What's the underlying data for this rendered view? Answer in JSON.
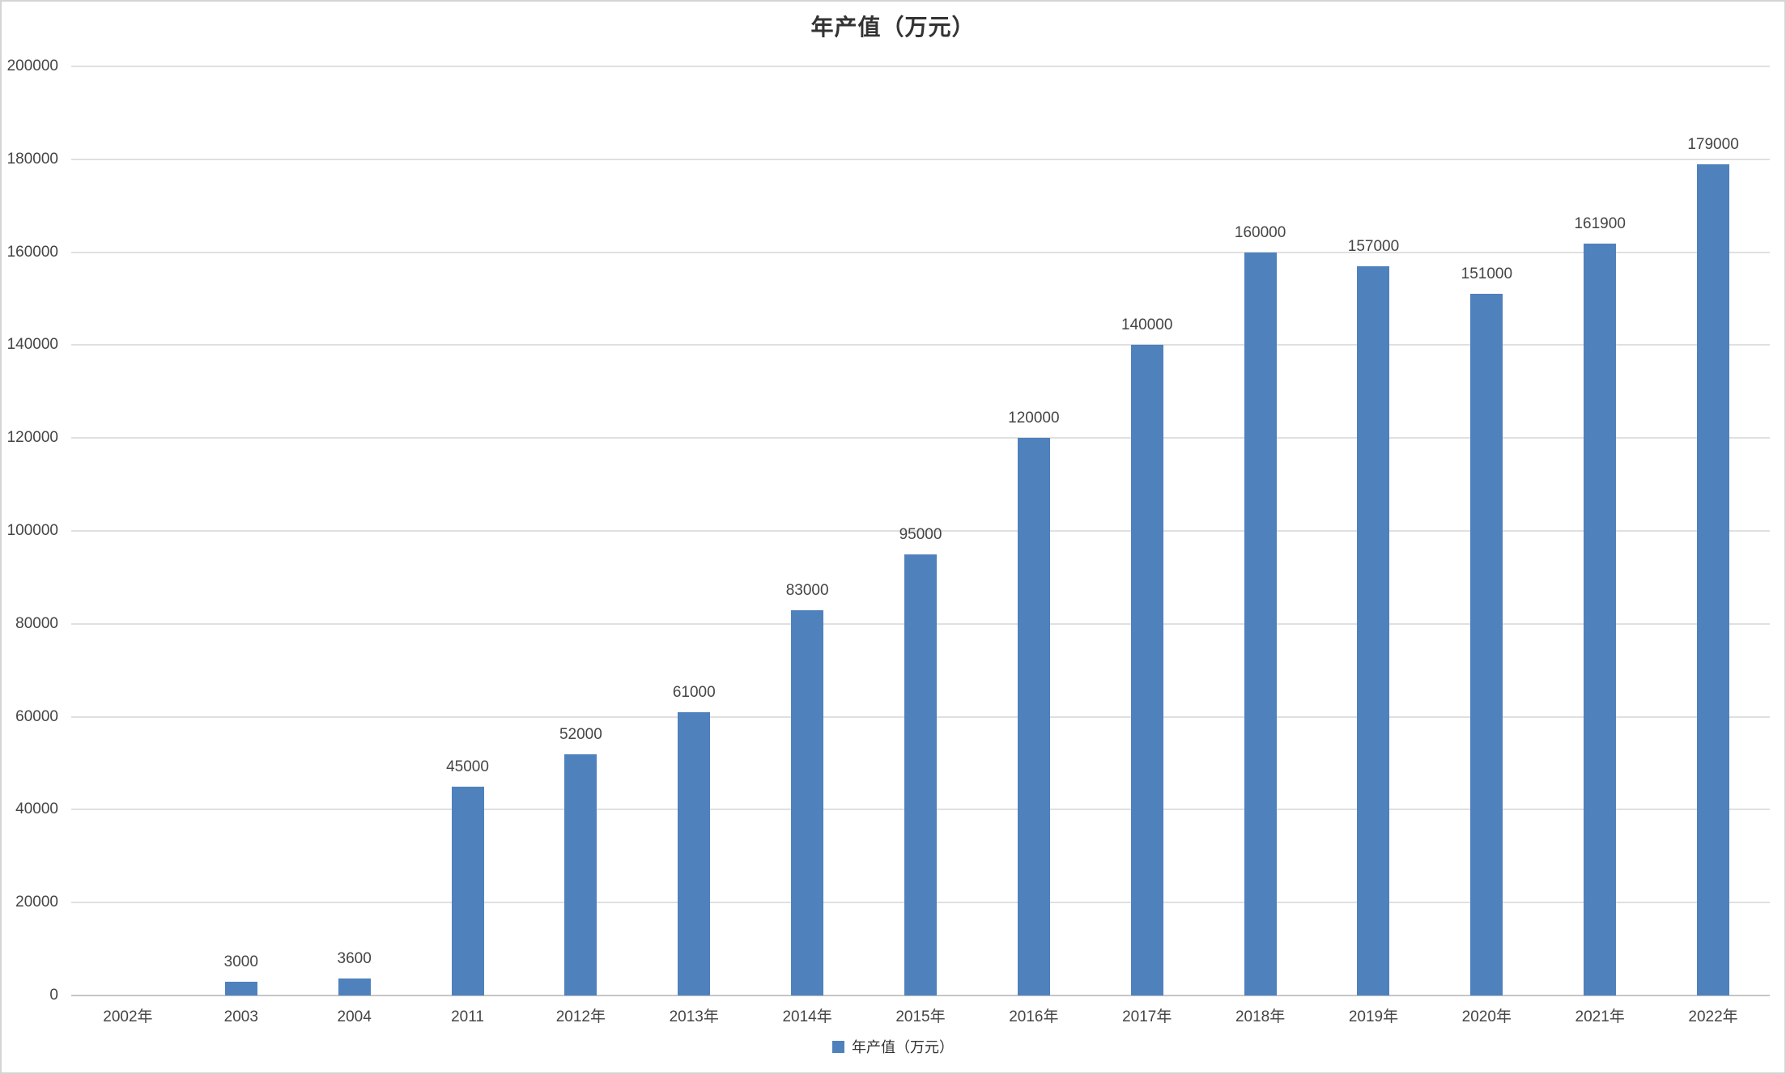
{
  "colors": {
    "bar": "#4f81bd",
    "gridline": "#e0e0e0",
    "axis_line": "#c6c6c6",
    "label_text": "#454545",
    "title_text": "#333333",
    "border": "#d4d4d4"
  },
  "chart_data": {
    "type": "bar",
    "title": "年产值（万元）",
    "categories": [
      "2002年",
      "2003",
      "2004",
      "2011",
      "2012年",
      "2013年",
      "2014年",
      "2015年",
      "2016年",
      "2017年",
      "2018年",
      "2019年",
      "2020年",
      "2021年",
      "2022年"
    ],
    "values": [
      null,
      3000,
      3600,
      45000,
      52000,
      61000,
      83000,
      95000,
      120000,
      140000,
      160000,
      157000,
      151000,
      161900,
      179000
    ],
    "data_labels": [
      "",
      "3000",
      "3600",
      "45000",
      "52000",
      "61000",
      "83000",
      "95000",
      "120000",
      "140000",
      "160000",
      "157000",
      "151000",
      "161900",
      "179000"
    ],
    "xlabel": "",
    "ylabel": "",
    "ylim": [
      0,
      200000
    ],
    "ytick_interval": 20000,
    "yticks": [
      "0",
      "20000",
      "40000",
      "60000",
      "80000",
      "100000",
      "120000",
      "140000",
      "160000",
      "180000",
      "200000"
    ],
    "grid": true,
    "bar_color": "#4f81bd",
    "legend": {
      "label": "年产值（万元）",
      "position": "bottom"
    }
  }
}
